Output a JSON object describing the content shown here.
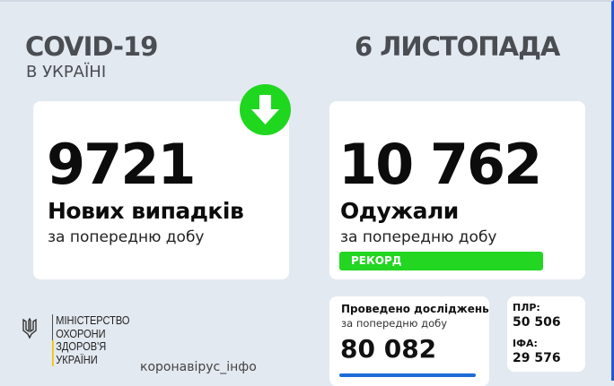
{
  "header": {
    "title": "COVID-19",
    "subtitle": "В УКРАЇНІ",
    "date": "6 ЛИСТОПАДА"
  },
  "new_cases": {
    "value": "9721",
    "label": "Нових випадків",
    "period": "за попередню добу",
    "trend_icon": "arrow-down-icon",
    "trend_color": "#1fd71f"
  },
  "recovered": {
    "value": "10 762",
    "label": "Одужали",
    "period": "за попередню добу",
    "badge": "РЕКОРД",
    "badge_color": "#22d622"
  },
  "tests": {
    "label": "Проведено досліджень",
    "period": "за попередню добу",
    "value": "80 082"
  },
  "test_types": {
    "pcr_label": "ПЛР:",
    "pcr_value": "50 506",
    "ifa_label": "ІФА:",
    "ifa_value": "29 576"
  },
  "footer": {
    "ministry": [
      "МІНІСТЕРСТВО",
      "ОХОРОНИ",
      "ЗДОРОВ'Я",
      "УКРАЇНИ"
    ],
    "site": "коронавірус_інфо"
  }
}
